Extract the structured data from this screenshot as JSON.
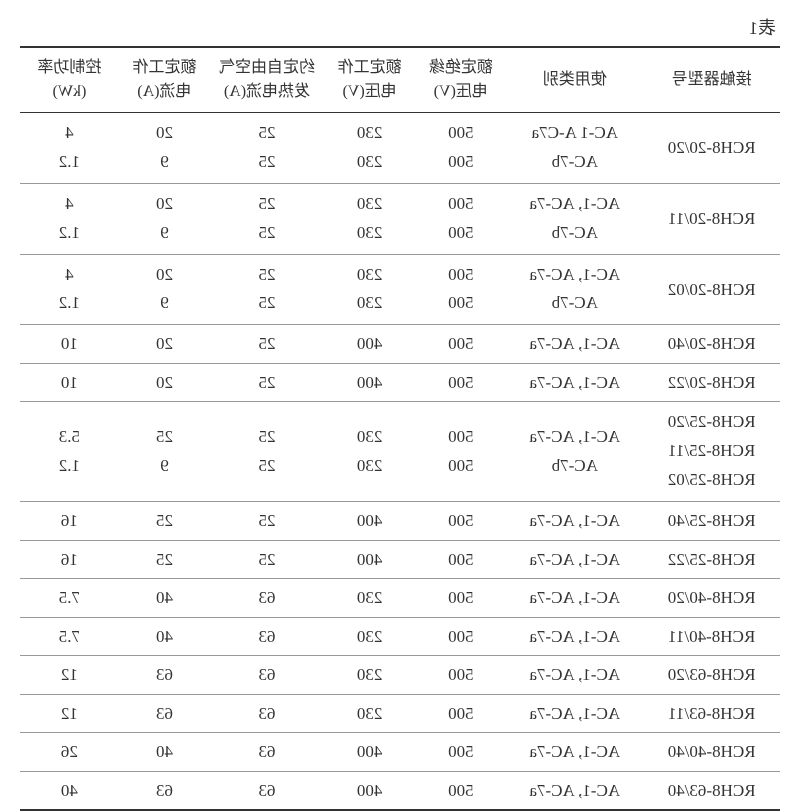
{
  "caption": "表1",
  "style": {
    "mirrored": true,
    "background_color": "#ffffff",
    "text_color": "#333333",
    "border_color": "#999999",
    "heavy_border_color": "#333333",
    "font_family": "SimSun / Microsoft YaHei",
    "header_fontsize_pt": 12,
    "body_fontsize_pt": 13,
    "caption_fontsize_pt": 13
  },
  "columns": [
    {
      "key": "model",
      "label": "接触器型号",
      "width_pct": 18,
      "align": "center"
    },
    {
      "key": "category",
      "label": "使用类别",
      "width_pct": 18,
      "align": "center"
    },
    {
      "key": "insulation_v",
      "label": "额定绝缘\n电压(V)",
      "width_pct": 12,
      "align": "center"
    },
    {
      "key": "work_v",
      "label": "额定工作\n电压(V)",
      "width_pct": 12,
      "align": "center"
    },
    {
      "key": "thermal_a",
      "label": "约定自由空气\n发热电流(A)",
      "width_pct": 15,
      "align": "center"
    },
    {
      "key": "work_a",
      "label": "额定工作\n电流(A)",
      "width_pct": 12,
      "align": "center"
    },
    {
      "key": "power_kw",
      "label": "控制功率\n(kW)",
      "width_pct": 13,
      "align": "center"
    }
  ],
  "rows": [
    {
      "model": "RCH8-20/20",
      "category": "AC-1 A-C7a\nAC-7b",
      "insulation_v": "500\n500",
      "work_v": "230\n230",
      "thermal_a": "25\n25",
      "work_a": "20\n9",
      "power_kw": "4\n1.2"
    },
    {
      "model": "RCH8-20/11",
      "category": "AC-1, AC-7a\nAC-7b",
      "insulation_v": "500\n500",
      "work_v": "230\n230",
      "thermal_a": "25\n25",
      "work_a": "20\n9",
      "power_kw": "4\n1.2"
    },
    {
      "model": "RCH8-20/02",
      "category": "AC-1, AC-7a\nAC-7b",
      "insulation_v": "500\n500",
      "work_v": "230\n230",
      "thermal_a": "25\n25",
      "work_a": "20\n9",
      "power_kw": "4\n1.2"
    },
    {
      "model": "RCH8-20/40",
      "category": "AC-1, AC-7a",
      "insulation_v": "500",
      "work_v": "400",
      "thermal_a": "25",
      "work_a": "20",
      "power_kw": "10"
    },
    {
      "model": "RCH8-20/22",
      "category": "AC-1, AC-7a",
      "insulation_v": "500",
      "work_v": "400",
      "thermal_a": "25",
      "work_a": "20",
      "power_kw": "10"
    },
    {
      "model": "RCH8-25/20\nRCH8-25/11\nRCH8-25/02",
      "category": "AC-1, AC-7a\nAC-7b",
      "insulation_v": "500\n500",
      "work_v": "230\n230",
      "thermal_a": "25\n25",
      "work_a": "25\n9",
      "power_kw": "5.3\n1.2"
    },
    {
      "model": "RCH8-25/40",
      "category": "AC-1, AC-7a",
      "insulation_v": "500",
      "work_v": "400",
      "thermal_a": "25",
      "work_a": "25",
      "power_kw": "16"
    },
    {
      "model": "RCH8-25/22",
      "category": "AC-1, AC-7a",
      "insulation_v": "500",
      "work_v": "400",
      "thermal_a": "25",
      "work_a": "25",
      "power_kw": "16"
    },
    {
      "model": "RCH8-40/20",
      "category": "AC-1, AC-7a",
      "insulation_v": "500",
      "work_v": "230",
      "thermal_a": "63",
      "work_a": "40",
      "power_kw": "7.5"
    },
    {
      "model": "RCH8-40/11",
      "category": "AC-1, AC-7a",
      "insulation_v": "500",
      "work_v": "230",
      "thermal_a": "63",
      "work_a": "40",
      "power_kw": "7.5"
    },
    {
      "model": "RCH8-63/20",
      "category": "AC-1, AC-7a",
      "insulation_v": "500",
      "work_v": "230",
      "thermal_a": "63",
      "work_a": "63",
      "power_kw": "12"
    },
    {
      "model": "RCH8-63/11",
      "category": "AC-1, AC-7a",
      "insulation_v": "500",
      "work_v": "230",
      "thermal_a": "63",
      "work_a": "63",
      "power_kw": "12"
    },
    {
      "model": "RCH8-40/40",
      "category": "AC-1, AC-7a",
      "insulation_v": "500",
      "work_v": "400",
      "thermal_a": "63",
      "work_a": "40",
      "power_kw": "26"
    },
    {
      "model": "RCH8-63/40",
      "category": "AC-1, AC-7a",
      "insulation_v": "500",
      "work_v": "400",
      "thermal_a": "63",
      "work_a": "63",
      "power_kw": "40"
    }
  ]
}
